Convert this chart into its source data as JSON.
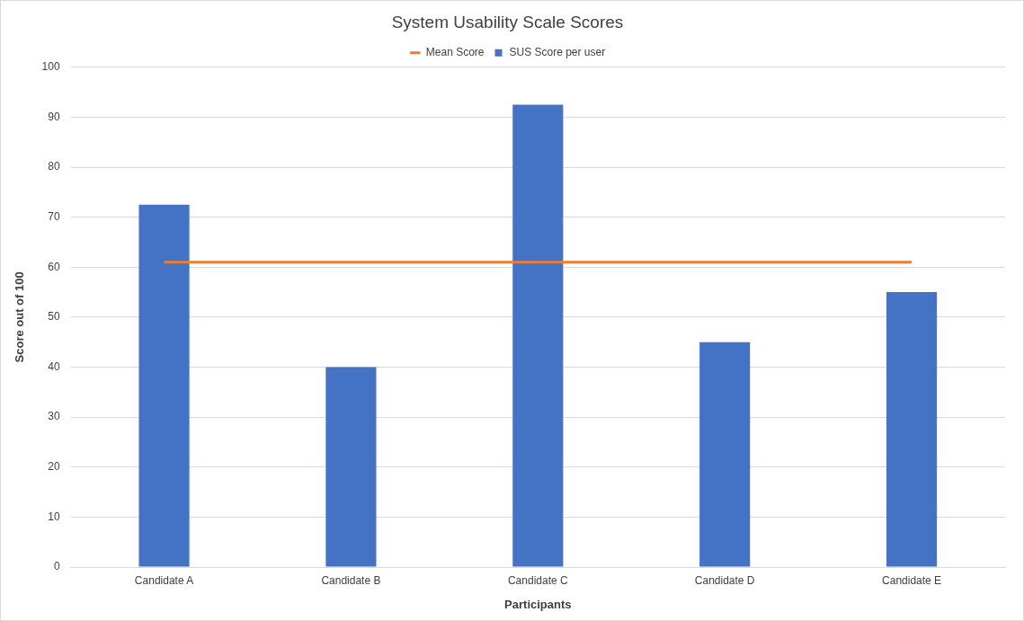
{
  "chart_data": {
    "type": "bar",
    "title": "System Usability Scale Scores",
    "xlabel": "Participants",
    "ylabel": "Score out of 100",
    "categories": [
      "Candidate A",
      "Candidate B",
      "Candidate C",
      "Candidate D",
      "Candidate E"
    ],
    "series": [
      {
        "name": "SUS Score per user",
        "color": "#4472c4",
        "values": [
          72.5,
          40,
          92.5,
          45,
          55
        ]
      },
      {
        "name": "Mean Score",
        "type": "line",
        "color": "#ed7d31",
        "values": [
          61,
          61,
          61,
          61,
          61
        ]
      }
    ],
    "ylim": [
      0,
      100
    ],
    "yticks": [
      0,
      10,
      20,
      30,
      40,
      50,
      60,
      70,
      80,
      90,
      100
    ],
    "grid": "y",
    "legend": "top"
  }
}
